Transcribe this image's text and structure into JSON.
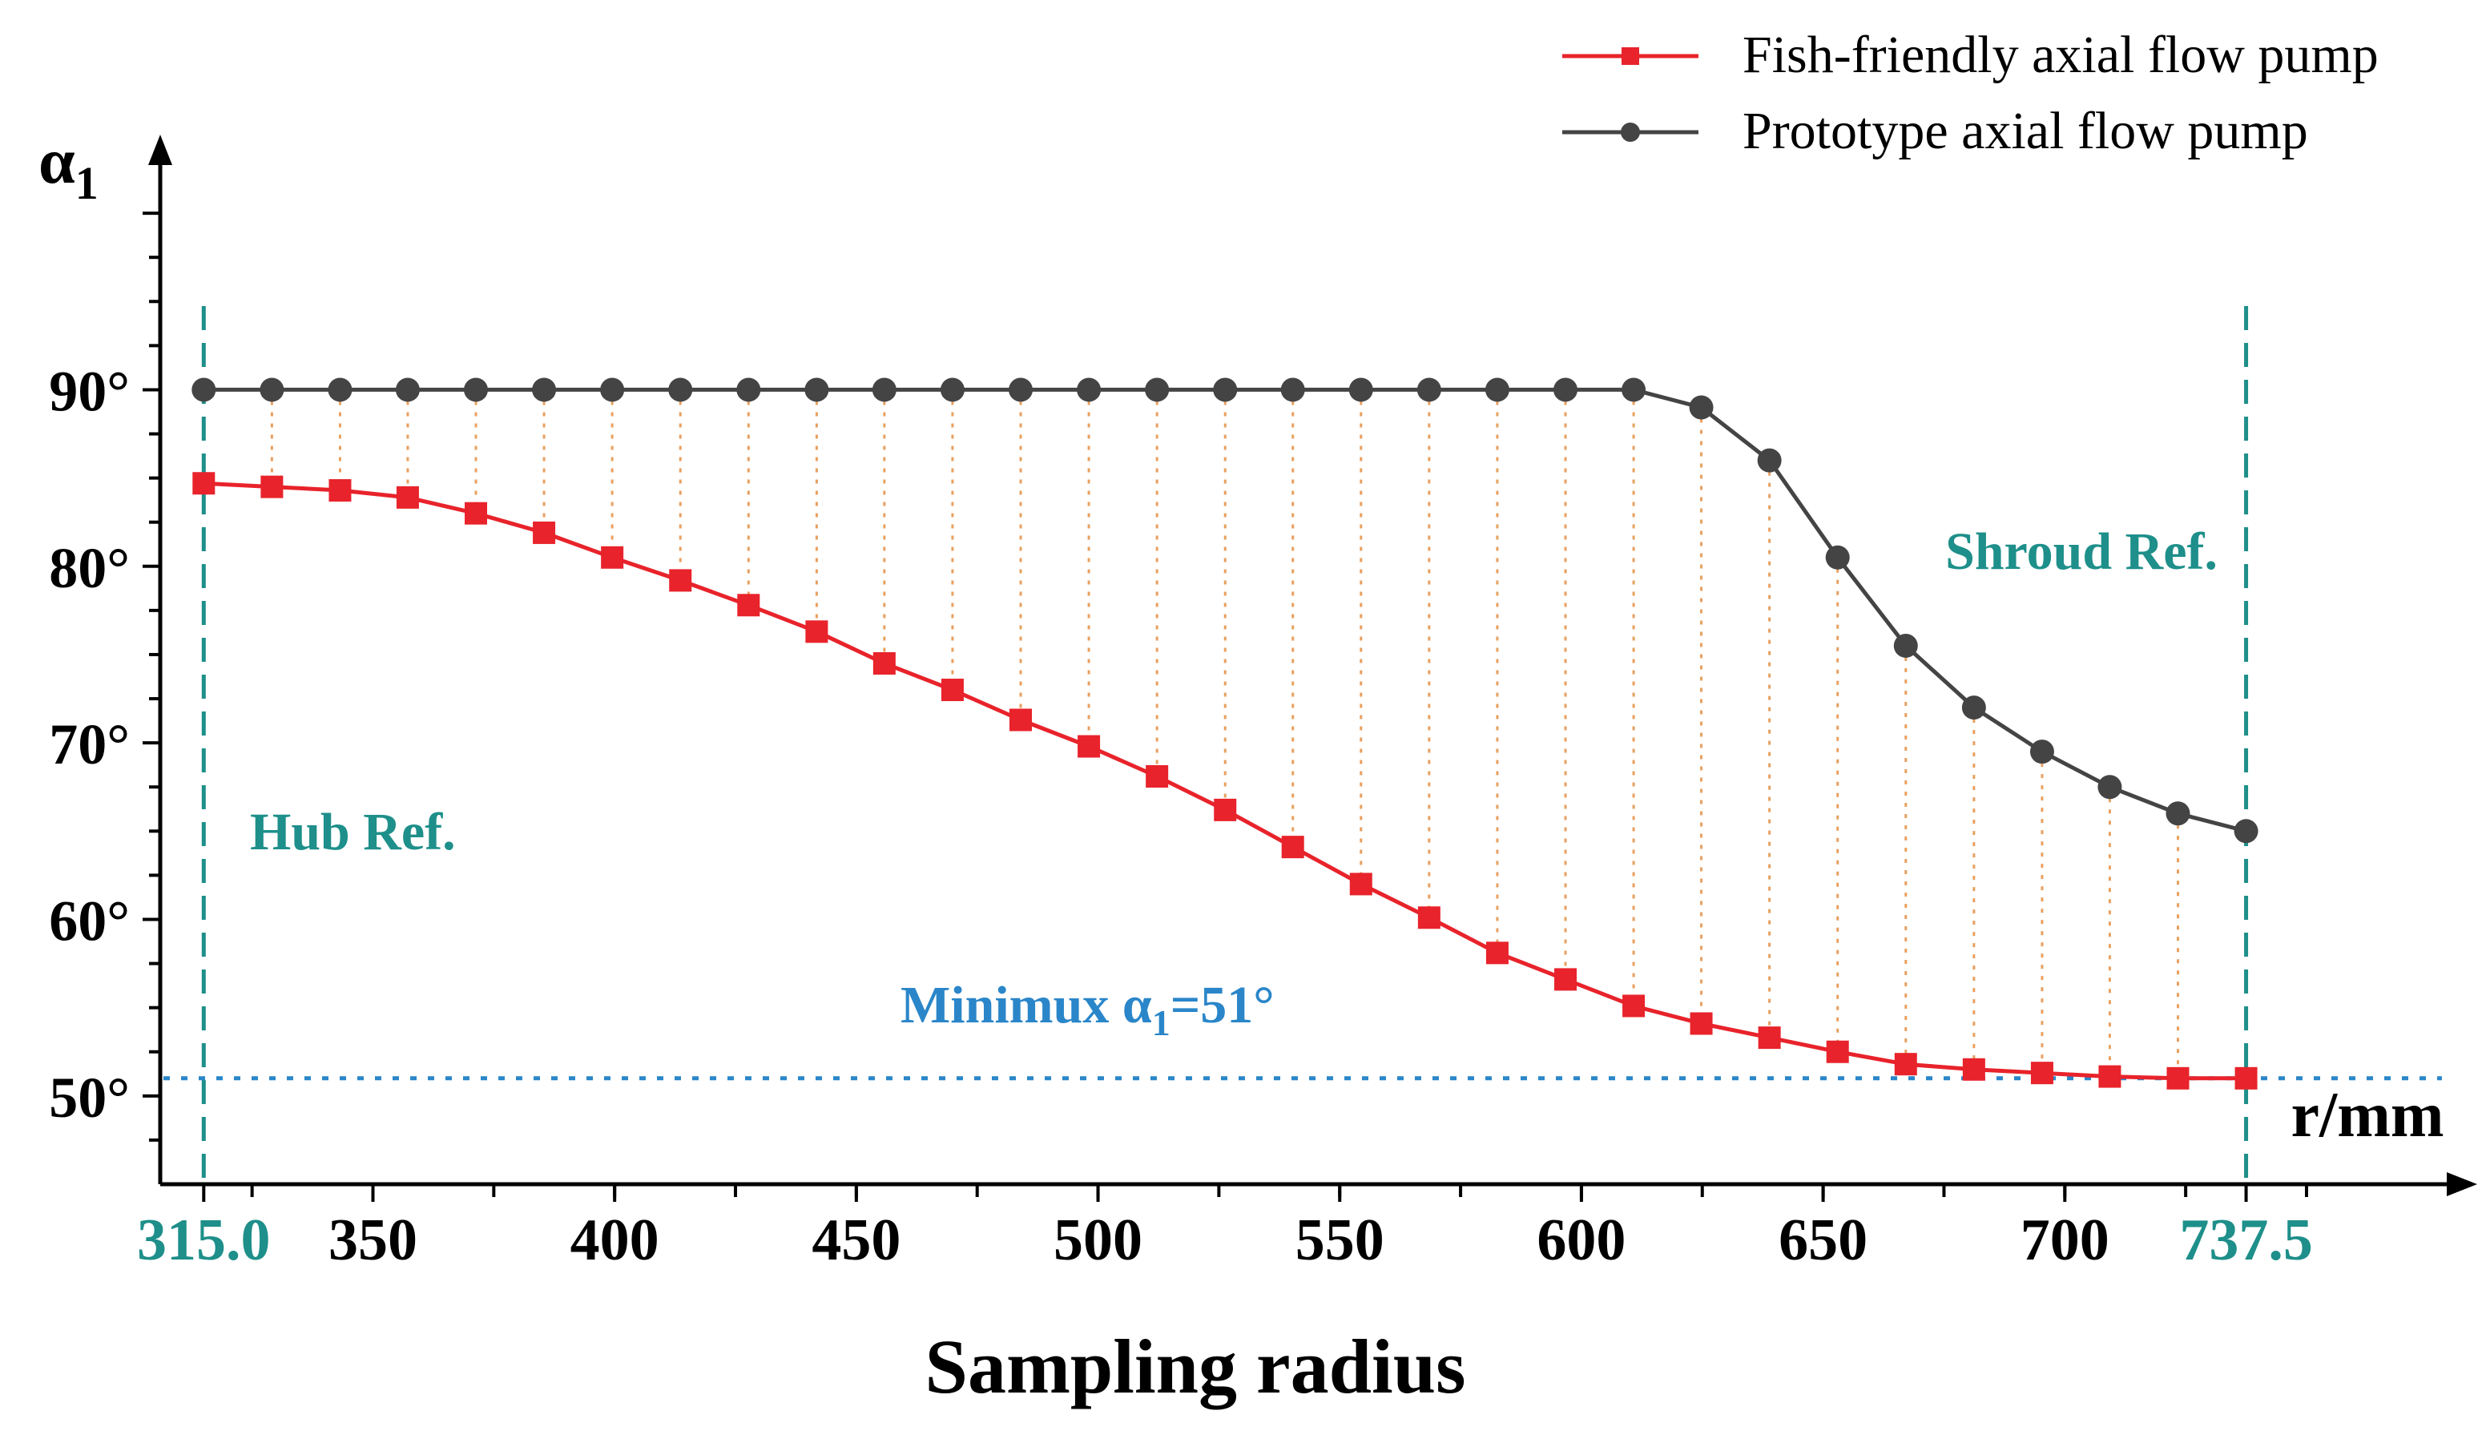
{
  "chart_data": {
    "type": "line",
    "title": "",
    "xlabel": "Sampling radius",
    "x_unit_label": "r/mm",
    "ylabel_main": "α",
    "ylabel_sub": "1",
    "xlim": [
      306,
      780
    ],
    "ylim": [
      45,
      103
    ],
    "x_ticks": [
      {
        "value": 315.0,
        "label": "315.0",
        "accent": true
      },
      {
        "value": 350,
        "label": "350",
        "accent": false
      },
      {
        "value": 400,
        "label": "400",
        "accent": false
      },
      {
        "value": 450,
        "label": "450",
        "accent": false
      },
      {
        "value": 500,
        "label": "500",
        "accent": false
      },
      {
        "value": 550,
        "label": "550",
        "accent": false
      },
      {
        "value": 600,
        "label": "600",
        "accent": false
      },
      {
        "value": 650,
        "label": "650",
        "accent": false
      },
      {
        "value": 700,
        "label": "700",
        "accent": false
      },
      {
        "value": 737.5,
        "label": "737.5",
        "accent": true
      }
    ],
    "y_ticks": [
      {
        "value": 50,
        "label": "50°"
      },
      {
        "value": 60,
        "label": "60°"
      },
      {
        "value": 70,
        "label": "70°"
      },
      {
        "value": 80,
        "label": "80°"
      },
      {
        "value": 90,
        "label": "90°"
      }
    ],
    "x": [
      315.0,
      329.1,
      343.2,
      357.2,
      371.3,
      385.4,
      399.5,
      413.6,
      427.7,
      441.8,
      455.8,
      469.9,
      484.0,
      498.1,
      512.2,
      526.3,
      540.3,
      554.4,
      568.5,
      582.6,
      596.7,
      610.8,
      624.8,
      638.9,
      653.0,
      667.1,
      681.2,
      695.3,
      709.3,
      723.4,
      737.5
    ],
    "series": [
      {
        "name": "Fish-friendly axial flow pump",
        "color": "#e8232b",
        "marker": "square",
        "values": [
          84.7,
          84.5,
          84.3,
          83.9,
          83.0,
          81.9,
          80.5,
          79.2,
          77.8,
          76.3,
          74.5,
          73.0,
          71.3,
          69.8,
          68.1,
          66.2,
          64.1,
          62.0,
          60.1,
          58.1,
          56.6,
          55.1,
          54.1,
          53.3,
          52.5,
          51.8,
          51.5,
          51.3,
          51.1,
          51.0,
          51.0
        ]
      },
      {
        "name": "Prototype axial flow pump",
        "color": "#444444",
        "marker": "circle",
        "values": [
          90.0,
          90.0,
          90.0,
          90.0,
          90.0,
          90.0,
          90.0,
          90.0,
          90.0,
          90.0,
          90.0,
          90.0,
          90.0,
          90.0,
          90.0,
          90.0,
          90.0,
          90.0,
          90.0,
          90.0,
          90.0,
          90.0,
          89.0,
          86.0,
          80.5,
          75.5,
          72.0,
          69.5,
          67.5,
          66.0,
          65.0
        ]
      }
    ],
    "reference_lines": [
      {
        "axis": "x",
        "value": 315.0,
        "label": "Hub Ref.",
        "color": "#1e8f8a"
      },
      {
        "axis": "x",
        "value": 737.5,
        "label": "Shroud Ref.",
        "color": "#1e8f8a"
      },
      {
        "axis": "y",
        "value": 51,
        "label_main": "Minimux α",
        "label_sub": "1",
        "label_tail": "=51°",
        "color": "#2a86c9"
      }
    ],
    "drop_lines": {
      "color": "#e8a060"
    },
    "legend_position": "top-right"
  }
}
